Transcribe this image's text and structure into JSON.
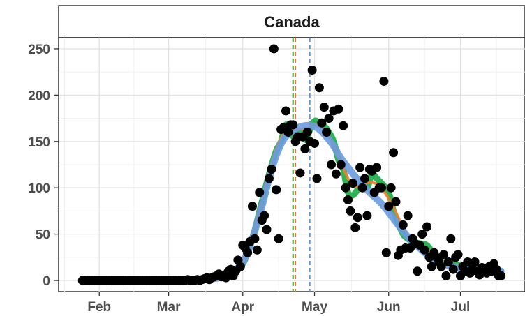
{
  "chart_data": {
    "type": "scatter",
    "panel_title": "Canada",
    "x_axis": {
      "type": "date",
      "ticks": [
        "2020-02-01",
        "2020-03-01",
        "2020-04-01",
        "2020-05-01",
        "2020-06-01",
        "2020-07-01"
      ],
      "tick_labels": [
        "Feb",
        "Mar",
        "Apr",
        "May",
        "Jun",
        "Jul"
      ],
      "range": [
        "2020-01-15",
        "2020-07-28"
      ]
    },
    "y_axis": {
      "ticks": [
        0,
        50,
        100,
        150,
        200,
        250
      ],
      "tick_labels": [
        "0",
        "50",
        "100",
        "150",
        "200",
        "250"
      ],
      "range": [
        -12,
        262
      ]
    },
    "grid": true,
    "colors": {
      "points": "#000000",
      "green_series": "#22b14c",
      "orange_series": "#f07f30",
      "blue_series": "#6a9be0",
      "vline_green": "#2ca02c",
      "vline_orange": "#e8743b",
      "vline_blue": "#5b8fe0"
    },
    "reference_lines": [
      {
        "color": "green",
        "x": "2020-04-22"
      },
      {
        "color": "orange",
        "x": "2020-04-23"
      },
      {
        "color": "blue",
        "x": "2020-04-29"
      }
    ],
    "points": [
      [
        "2020-01-25",
        0
      ],
      [
        "2020-01-26",
        0
      ],
      [
        "2020-01-27",
        0
      ],
      [
        "2020-01-28",
        0
      ],
      [
        "2020-01-29",
        0
      ],
      [
        "2020-01-30",
        0
      ],
      [
        "2020-01-31",
        0
      ],
      [
        "2020-02-01",
        0
      ],
      [
        "2020-02-02",
        0
      ],
      [
        "2020-02-03",
        0
      ],
      [
        "2020-02-04",
        0
      ],
      [
        "2020-02-05",
        0
      ],
      [
        "2020-02-06",
        0
      ],
      [
        "2020-02-07",
        0
      ],
      [
        "2020-02-08",
        0
      ],
      [
        "2020-02-09",
        0
      ],
      [
        "2020-02-10",
        0
      ],
      [
        "2020-02-11",
        0
      ],
      [
        "2020-02-12",
        0
      ],
      [
        "2020-02-13",
        0
      ],
      [
        "2020-02-14",
        0
      ],
      [
        "2020-02-15",
        0
      ],
      [
        "2020-02-16",
        0
      ],
      [
        "2020-02-17",
        0
      ],
      [
        "2020-02-18",
        0
      ],
      [
        "2020-02-19",
        0
      ],
      [
        "2020-02-20",
        0
      ],
      [
        "2020-02-21",
        0
      ],
      [
        "2020-02-22",
        0
      ],
      [
        "2020-02-23",
        0
      ],
      [
        "2020-02-24",
        0
      ],
      [
        "2020-02-25",
        0
      ],
      [
        "2020-02-26",
        0
      ],
      [
        "2020-02-27",
        0
      ],
      [
        "2020-02-28",
        0
      ],
      [
        "2020-02-29",
        0
      ],
      [
        "2020-03-01",
        0
      ],
      [
        "2020-03-02",
        0
      ],
      [
        "2020-03-03",
        0
      ],
      [
        "2020-03-04",
        0
      ],
      [
        "2020-03-05",
        0
      ],
      [
        "2020-03-06",
        0
      ],
      [
        "2020-03-07",
        0
      ],
      [
        "2020-03-08",
        0
      ],
      [
        "2020-03-09",
        1
      ],
      [
        "2020-03-10",
        0
      ],
      [
        "2020-03-11",
        0
      ],
      [
        "2020-03-12",
        0
      ],
      [
        "2020-03-13",
        1
      ],
      [
        "2020-03-14",
        0
      ],
      [
        "2020-03-15",
        1
      ],
      [
        "2020-03-16",
        2
      ],
      [
        "2020-03-17",
        3
      ],
      [
        "2020-03-18",
        1
      ],
      [
        "2020-03-19",
        3
      ],
      [
        "2020-03-20",
        4
      ],
      [
        "2020-03-21",
        5
      ],
      [
        "2020-03-22",
        7
      ],
      [
        "2020-03-23",
        4
      ],
      [
        "2020-03-24",
        6
      ],
      [
        "2020-03-25",
        3
      ],
      [
        "2020-03-26",
        10
      ],
      [
        "2020-03-27",
        12
      ],
      [
        "2020-03-28",
        5
      ],
      [
        "2020-03-29",
        10
      ],
      [
        "2020-03-30",
        22
      ],
      [
        "2020-03-31",
        15
      ],
      [
        "2020-04-01",
        38
      ],
      [
        "2020-04-02",
        35
      ],
      [
        "2020-04-03",
        30
      ],
      [
        "2020-04-04",
        42
      ],
      [
        "2020-04-05",
        80
      ],
      [
        "2020-04-06",
        45
      ],
      [
        "2020-04-07",
        33
      ],
      [
        "2020-04-08",
        95
      ],
      [
        "2020-04-09",
        65
      ],
      [
        "2020-04-10",
        70
      ],
      [
        "2020-04-11",
        55
      ],
      [
        "2020-04-12",
        110
      ],
      [
        "2020-04-13",
        120
      ],
      [
        "2020-04-14",
        250
      ],
      [
        "2020-04-15",
        98
      ],
      [
        "2020-04-16",
        45
      ],
      [
        "2020-04-17",
        163
      ],
      [
        "2020-04-18",
        165
      ],
      [
        "2020-04-19",
        183
      ],
      [
        "2020-04-20",
        160
      ],
      [
        "2020-04-21",
        168
      ],
      [
        "2020-04-22",
        168
      ],
      [
        "2020-04-23",
        150
      ],
      [
        "2020-04-24",
        155
      ],
      [
        "2020-04-25",
        116
      ],
      [
        "2020-04-26",
        155
      ],
      [
        "2020-04-27",
        142
      ],
      [
        "2020-04-28",
        160
      ],
      [
        "2020-04-29",
        150
      ],
      [
        "2020-04-30",
        227
      ],
      [
        "2020-05-01",
        148
      ],
      [
        "2020-05-02",
        110
      ],
      [
        "2020-05-03",
        208
      ],
      [
        "2020-05-04",
        170
      ],
      [
        "2020-05-05",
        187
      ],
      [
        "2020-05-06",
        160
      ],
      [
        "2020-05-07",
        175
      ],
      [
        "2020-05-08",
        125
      ],
      [
        "2020-05-09",
        183
      ],
      [
        "2020-05-10",
        115
      ],
      [
        "2020-05-11",
        185
      ],
      [
        "2020-05-12",
        125
      ],
      [
        "2020-05-13",
        167
      ],
      [
        "2020-05-14",
        100
      ],
      [
        "2020-05-15",
        87
      ],
      [
        "2020-05-16",
        75
      ],
      [
        "2020-05-17",
        105
      ],
      [
        "2020-05-18",
        57
      ],
      [
        "2020-05-19",
        68
      ],
      [
        "2020-05-20",
        122
      ],
      [
        "2020-05-21",
        100
      ],
      [
        "2020-05-22",
        110
      ],
      [
        "2020-05-23",
        70
      ],
      [
        "2020-05-24",
        120
      ],
      [
        "2020-05-25",
        118
      ],
      [
        "2020-05-26",
        95
      ],
      [
        "2020-05-27",
        122
      ],
      [
        "2020-05-28",
        100
      ],
      [
        "2020-05-29",
        100
      ],
      [
        "2020-05-30",
        215
      ],
      [
        "2020-05-31",
        30
      ],
      [
        "2020-06-01",
        80
      ],
      [
        "2020-06-02",
        100
      ],
      [
        "2020-06-03",
        138
      ],
      [
        "2020-06-04",
        85
      ],
      [
        "2020-06-05",
        27
      ],
      [
        "2020-06-06",
        33
      ],
      [
        "2020-06-07",
        60
      ],
      [
        "2020-06-08",
        35
      ],
      [
        "2020-06-09",
        70
      ],
      [
        "2020-06-10",
        35
      ],
      [
        "2020-06-11",
        45
      ],
      [
        "2020-06-12",
        40
      ],
      [
        "2020-06-13",
        10
      ],
      [
        "2020-06-14",
        38
      ],
      [
        "2020-06-15",
        50
      ],
      [
        "2020-06-16",
        33
      ],
      [
        "2020-06-17",
        58
      ],
      [
        "2020-06-18",
        25
      ],
      [
        "2020-06-19",
        15
      ],
      [
        "2020-06-20",
        30
      ],
      [
        "2020-06-21",
        25
      ],
      [
        "2020-06-22",
        20
      ],
      [
        "2020-06-23",
        15
      ],
      [
        "2020-06-24",
        28
      ],
      [
        "2020-06-25",
        5
      ],
      [
        "2020-06-26",
        20
      ],
      [
        "2020-06-27",
        45
      ],
      [
        "2020-06-28",
        12
      ],
      [
        "2020-06-29",
        25
      ],
      [
        "2020-06-30",
        28
      ],
      [
        "2020-07-01",
        5
      ],
      [
        "2020-07-02",
        15
      ],
      [
        "2020-07-03",
        10
      ],
      [
        "2020-07-04",
        20
      ],
      [
        "2020-07-05",
        8
      ],
      [
        "2020-07-06",
        12
      ],
      [
        "2020-07-07",
        20
      ],
      [
        "2020-07-08",
        10
      ],
      [
        "2020-07-09",
        6
      ],
      [
        "2020-07-10",
        14
      ],
      [
        "2020-07-11",
        10
      ],
      [
        "2020-07-12",
        8
      ],
      [
        "2020-07-13",
        15
      ],
      [
        "2020-07-14",
        10
      ],
      [
        "2020-07-15",
        18
      ],
      [
        "2020-07-16",
        12
      ],
      [
        "2020-07-17",
        5
      ],
      [
        "2020-07-18",
        5
      ]
    ],
    "green_series": [
      [
        "2020-01-25",
        0
      ],
      [
        "2020-03-10",
        0
      ],
      [
        "2020-03-20",
        2
      ],
      [
        "2020-03-27",
        6
      ],
      [
        "2020-04-01",
        18
      ],
      [
        "2020-04-05",
        45
      ],
      [
        "2020-04-09",
        85
      ],
      [
        "2020-04-12",
        115
      ],
      [
        "2020-04-15",
        140
      ],
      [
        "2020-04-17",
        150
      ],
      [
        "2020-04-19",
        168
      ],
      [
        "2020-04-21",
        158
      ],
      [
        "2020-04-23",
        155
      ],
      [
        "2020-04-25",
        160
      ],
      [
        "2020-04-27",
        152
      ],
      [
        "2020-04-29",
        162
      ],
      [
        "2020-05-01",
        172
      ],
      [
        "2020-05-03",
        170
      ],
      [
        "2020-05-05",
        167
      ],
      [
        "2020-05-07",
        160
      ],
      [
        "2020-05-09",
        150
      ],
      [
        "2020-05-11",
        130
      ],
      [
        "2020-05-13",
        120
      ],
      [
        "2020-05-15",
        95
      ],
      [
        "2020-05-17",
        92
      ],
      [
        "2020-05-19",
        98
      ],
      [
        "2020-05-21",
        105
      ],
      [
        "2020-05-23",
        100
      ],
      [
        "2020-05-25",
        115
      ],
      [
        "2020-05-27",
        110
      ],
      [
        "2020-05-29",
        105
      ],
      [
        "2020-06-01",
        95
      ],
      [
        "2020-06-03",
        75
      ],
      [
        "2020-06-05",
        62
      ],
      [
        "2020-06-07",
        50
      ],
      [
        "2020-06-09",
        45
      ],
      [
        "2020-06-11",
        42
      ],
      [
        "2020-06-14",
        40
      ],
      [
        "2020-06-17",
        38
      ],
      [
        "2020-06-20",
        28
      ],
      [
        "2020-06-23",
        20
      ],
      [
        "2020-06-26",
        18
      ],
      [
        "2020-06-29",
        17
      ],
      [
        "2020-07-02",
        15
      ],
      [
        "2020-07-06",
        12
      ],
      [
        "2020-07-10",
        11
      ],
      [
        "2020-07-14",
        10
      ],
      [
        "2020-07-18",
        10
      ]
    ],
    "orange_series": [
      [
        "2020-01-25",
        0
      ],
      [
        "2020-03-10",
        0
      ],
      [
        "2020-03-20",
        2
      ],
      [
        "2020-03-27",
        7
      ],
      [
        "2020-04-01",
        20
      ],
      [
        "2020-04-05",
        48
      ],
      [
        "2020-04-09",
        88
      ],
      [
        "2020-04-12",
        118
      ],
      [
        "2020-04-15",
        142
      ],
      [
        "2020-04-18",
        158
      ],
      [
        "2020-04-21",
        162
      ],
      [
        "2020-04-24",
        163
      ],
      [
        "2020-04-27",
        164
      ],
      [
        "2020-04-30",
        168
      ],
      [
        "2020-05-03",
        166
      ],
      [
        "2020-05-06",
        160
      ],
      [
        "2020-05-09",
        146
      ],
      [
        "2020-05-12",
        128
      ],
      [
        "2020-05-15",
        110
      ],
      [
        "2020-05-18",
        102
      ],
      [
        "2020-05-21",
        104
      ],
      [
        "2020-05-24",
        106
      ],
      [
        "2020-05-27",
        104
      ],
      [
        "2020-05-30",
        96
      ],
      [
        "2020-06-02",
        84
      ],
      [
        "2020-06-05",
        68
      ],
      [
        "2020-06-08",
        54
      ],
      [
        "2020-06-11",
        45
      ],
      [
        "2020-06-14",
        40
      ],
      [
        "2020-06-17",
        34
      ],
      [
        "2020-06-20",
        27
      ],
      [
        "2020-06-23",
        21
      ],
      [
        "2020-06-26",
        18
      ],
      [
        "2020-06-29",
        16
      ],
      [
        "2020-07-02",
        14
      ],
      [
        "2020-07-06",
        12
      ],
      [
        "2020-07-10",
        11
      ],
      [
        "2020-07-14",
        10
      ],
      [
        "2020-07-18",
        10
      ]
    ],
    "blue_series": [
      [
        "2020-01-25",
        0
      ],
      [
        "2020-03-05",
        0
      ],
      [
        "2020-03-15",
        1
      ],
      [
        "2020-03-22",
        3
      ],
      [
        "2020-03-27",
        8
      ],
      [
        "2020-04-01",
        20
      ],
      [
        "2020-04-05",
        45
      ],
      [
        "2020-04-09",
        80
      ],
      [
        "2020-04-12",
        110
      ],
      [
        "2020-04-15",
        135
      ],
      [
        "2020-04-18",
        152
      ],
      [
        "2020-04-21",
        160
      ],
      [
        "2020-04-24",
        165
      ],
      [
        "2020-04-27",
        167
      ],
      [
        "2020-04-30",
        167
      ],
      [
        "2020-05-03",
        163
      ],
      [
        "2020-05-06",
        155
      ],
      [
        "2020-05-09",
        145
      ],
      [
        "2020-05-12",
        132
      ],
      [
        "2020-05-15",
        122
      ],
      [
        "2020-05-18",
        112
      ],
      [
        "2020-05-21",
        103
      ],
      [
        "2020-05-24",
        95
      ],
      [
        "2020-05-27",
        88
      ],
      [
        "2020-05-30",
        80
      ],
      [
        "2020-06-02",
        70
      ],
      [
        "2020-06-05",
        60
      ],
      [
        "2020-06-08",
        50
      ],
      [
        "2020-06-11",
        42
      ],
      [
        "2020-06-14",
        35
      ],
      [
        "2020-06-17",
        28
      ],
      [
        "2020-06-20",
        23
      ],
      [
        "2020-06-23",
        19
      ],
      [
        "2020-06-26",
        16
      ],
      [
        "2020-06-29",
        14
      ],
      [
        "2020-07-02",
        12
      ],
      [
        "2020-07-06",
        11
      ],
      [
        "2020-07-10",
        10
      ],
      [
        "2020-07-14",
        10
      ],
      [
        "2020-07-18",
        10
      ]
    ]
  }
}
